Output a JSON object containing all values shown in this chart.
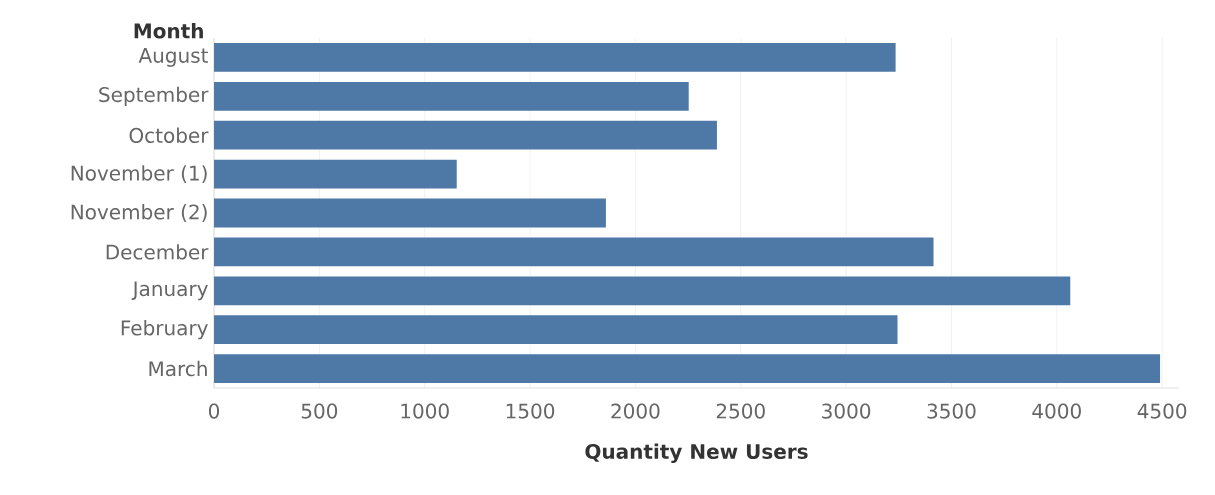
{
  "chart_data": {
    "type": "bar",
    "orientation": "horizontal",
    "ylabel": "Month",
    "xlabel": "Quantity New Users",
    "categories": [
      "August",
      "September",
      "October",
      "November (1)",
      "November (2)",
      "December",
      "January",
      "February",
      "March"
    ],
    "values": [
      3235,
      2253,
      2387,
      1152,
      1860,
      3415,
      4064,
      3244,
      4491
    ],
    "color": "#4e79a7",
    "xlim": [
      0,
      4580
    ],
    "xticks": [
      0,
      500,
      1000,
      1500,
      2000,
      2500,
      3000,
      3500,
      4000,
      4500
    ],
    "grid": "x"
  }
}
